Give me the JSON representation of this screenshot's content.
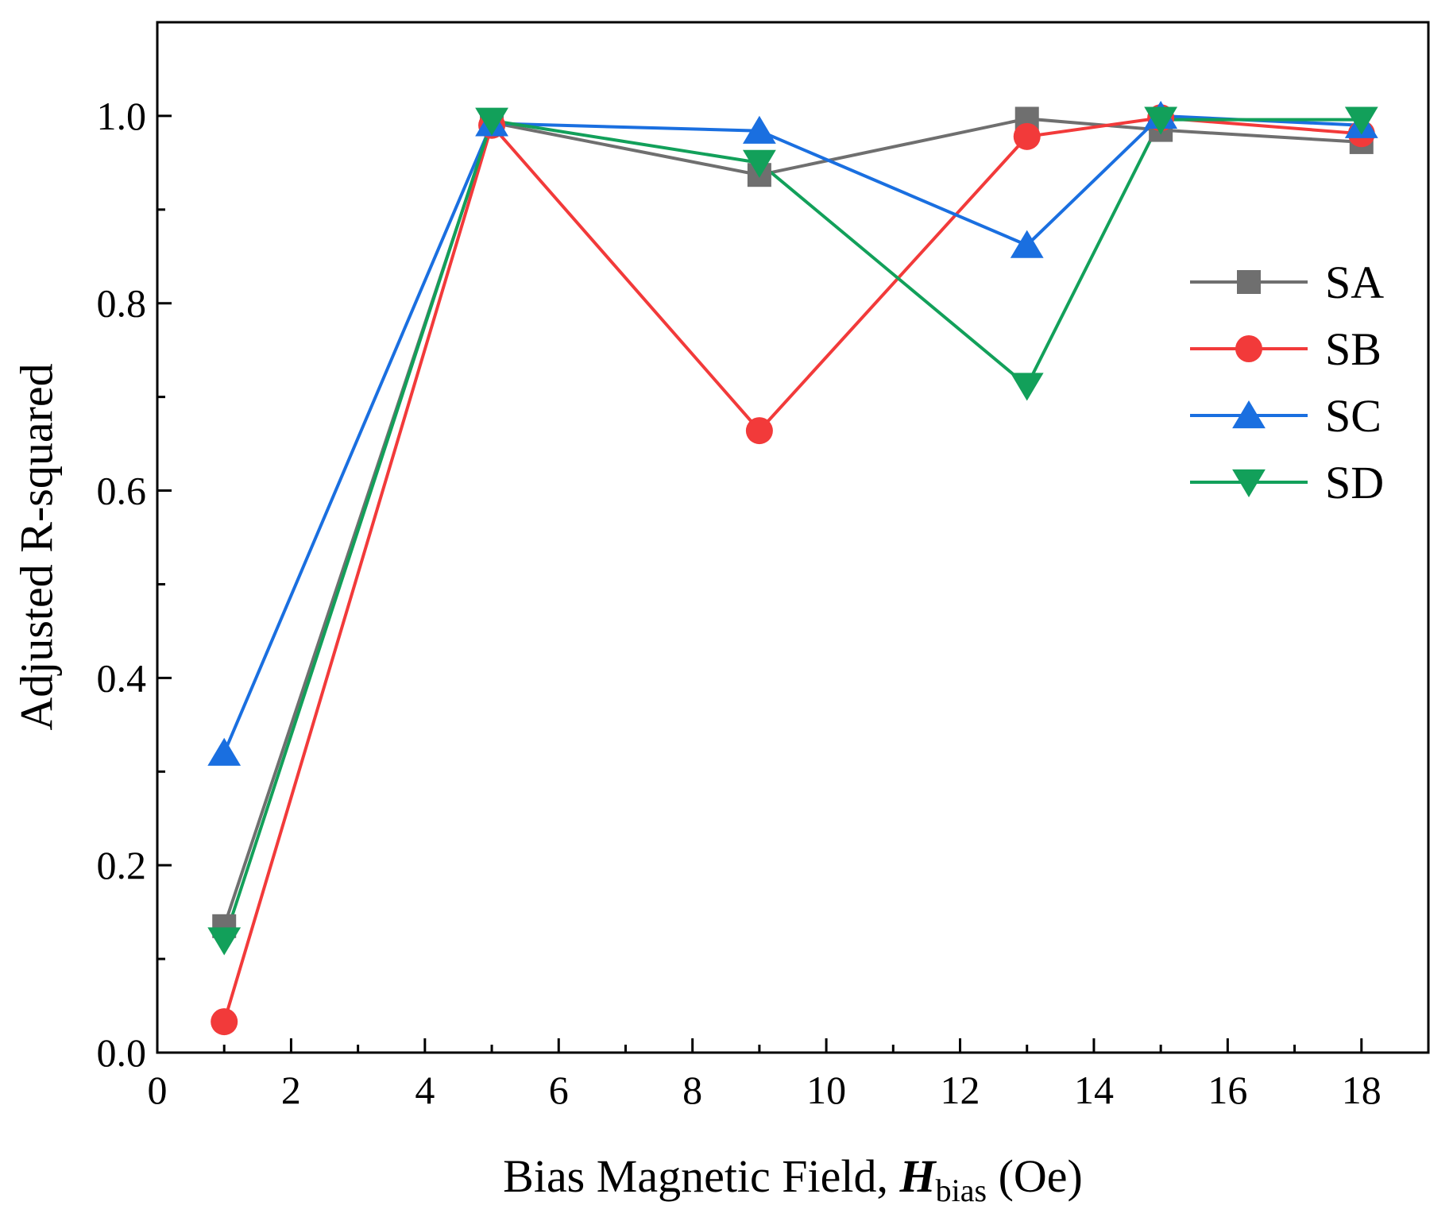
{
  "chart_data": {
    "type": "line",
    "title": "",
    "xlabel": {
      "prefix": "Bias Magnetic Field, ",
      "symbol": "H",
      "subscript": "bias",
      "suffix": " (Oe)"
    },
    "ylabel": "Adjusted R-squared",
    "xlim": [
      0,
      19
    ],
    "ylim": [
      0,
      1.1
    ],
    "x_ticks": [
      0,
      2,
      4,
      6,
      8,
      10,
      12,
      14,
      16,
      18
    ],
    "x_tick_labels": [
      "0",
      "2",
      "4",
      "6",
      "8",
      "10",
      "12",
      "14",
      "16",
      "18"
    ],
    "y_ticks": [
      0.0,
      0.2,
      0.4,
      0.6,
      0.8,
      1.0
    ],
    "y_tick_labels": [
      "0.0",
      "0.2",
      "0.4",
      "0.6",
      "0.8",
      "1.0"
    ],
    "x_minor_step": 1,
    "y_minor_step": 0.1,
    "grid": false,
    "legend_position": "right",
    "x": [
      1,
      5,
      9,
      13,
      15,
      18
    ],
    "series": [
      {
        "name": "SA",
        "marker": "square",
        "color": "#6f6f6f",
        "values": [
          0.135,
          0.993,
          0.937,
          0.997,
          0.985,
          0.972
        ]
      },
      {
        "name": "SB",
        "marker": "circle",
        "color": "#f23a3a",
        "values": [
          0.033,
          0.99,
          0.664,
          0.978,
          0.998,
          0.981
        ]
      },
      {
        "name": "SC",
        "marker": "triangle-up",
        "color": "#1a6fe0",
        "values": [
          0.32,
          0.992,
          0.984,
          0.862,
          1.0,
          0.99
        ]
      },
      {
        "name": "SD",
        "marker": "triangle-down",
        "color": "#12a05a",
        "values": [
          0.12,
          0.995,
          0.95,
          0.712,
          0.996,
          0.996
        ]
      }
    ]
  }
}
